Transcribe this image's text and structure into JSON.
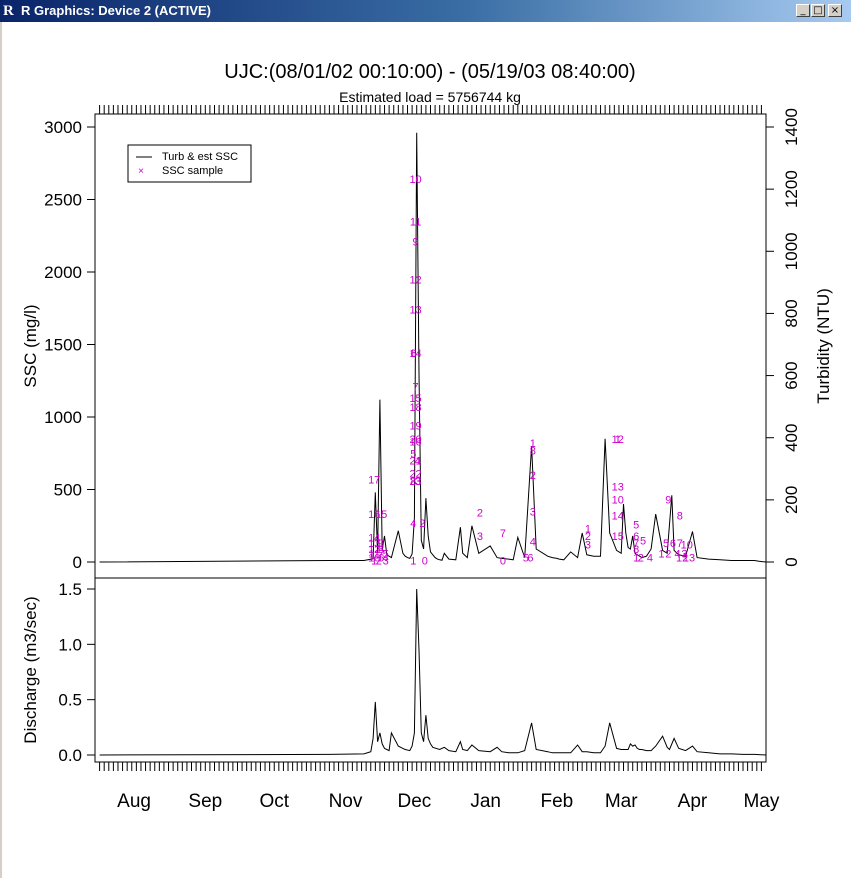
{
  "window": {
    "title": "R Graphics: Device 2 (ACTIVE)",
    "controls": {
      "minimize": "_",
      "maximize": "□",
      "close": "×"
    }
  },
  "chart_data": [
    {
      "type": "line",
      "title": "UJC:(08/01/02 00:10:00) - (05/19/03 08:40:00)",
      "subtitle": "Estimated load = 5756744 kg",
      "ylabel": "SSC (mg/l)",
      "y2label": "Turbidity (NTU)",
      "ylim": [
        0,
        3000
      ],
      "y2lim": [
        0,
        1400
      ],
      "yticks": [
        0,
        500,
        1000,
        1500,
        2000,
        2500,
        3000
      ],
      "y2ticks": [
        0,
        200,
        400,
        600,
        800,
        1000,
        1200,
        1400
      ],
      "legend": {
        "placement": "top-left",
        "entries": [
          {
            "label": "Turb & est SSC",
            "symbol": "line",
            "color": "#000000"
          },
          {
            "label": "SSC sample",
            "symbol": "×",
            "color": "#cc00cc"
          }
        ]
      },
      "series": [
        {
          "name": "Turb & est SSC",
          "color": "#000000",
          "x": [
            0,
            100,
            115,
            119,
            120,
            121,
            122,
            123,
            124,
            125,
            126,
            127,
            130,
            132,
            133,
            134,
            135,
            136,
            137,
            138,
            139,
            140,
            141,
            142,
            143,
            144,
            145,
            146,
            147,
            148,
            149,
            150,
            152,
            155,
            157,
            158,
            160,
            162,
            165,
            170,
            173,
            175,
            178,
            180,
            182,
            185,
            188,
            190,
            195,
            197,
            199,
            200,
            202,
            205,
            208,
            210,
            212,
            215,
            218,
            220,
            222,
            225,
            227,
            228,
            229,
            230,
            231,
            232,
            233,
            234,
            235,
            236,
            237,
            238,
            240,
            242,
            245,
            247,
            249,
            250,
            252,
            255,
            258,
            260,
            265,
            270,
            275,
            280,
            285,
            287,
            290
          ],
          "values": [
            0,
            10,
            10,
            22,
            480,
            60,
            1120,
            80,
            180,
            50,
            40,
            30,
            215,
            60,
            40,
            30,
            25,
            55,
            300,
            2960,
            1300,
            150,
            90,
            440,
            180,
            70,
            50,
            30,
            20,
            15,
            12,
            60,
            20,
            15,
            240,
            60,
            30,
            250,
            60,
            110,
            30,
            25,
            20,
            15,
            170,
            30,
            800,
            90,
            40,
            30,
            25,
            20,
            15,
            70,
            30,
            200,
            50,
            40,
            40,
            850,
            200,
            80,
            60,
            400,
            200,
            100,
            90,
            180,
            60,
            50,
            40,
            30,
            35,
            40,
            90,
            330,
            80,
            60,
            460,
            80,
            50,
            40,
            210,
            30,
            20,
            15,
            10,
            10,
            10,
            5,
            0
          ]
        }
      ],
      "sample_points_ssc": [
        {
          "label": "17",
          "x": 119.5,
          "y": 570
        },
        {
          "label": "16",
          "x": 119.5,
          "y": 330
        },
        {
          "label": "15",
          "x": 122.5,
          "y": 330
        },
        {
          "label": "14",
          "x": 119.5,
          "y": 170
        },
        {
          "label": "13",
          "x": 119.5,
          "y": 130
        },
        {
          "label": "12",
          "x": 119.5,
          "y": 90
        },
        {
          "label": "11",
          "x": 119.5,
          "y": 60
        },
        {
          "label": "10",
          "x": 119.5,
          "y": 30
        },
        {
          "label": "9",
          "x": 122.5,
          "y": 130
        },
        {
          "label": "8",
          "x": 122.5,
          "y": 90
        },
        {
          "label": "7",
          "x": 122.5,
          "y": 60
        },
        {
          "label": "6",
          "x": 122.5,
          "y": 30
        },
        {
          "label": "5",
          "x": 124.5,
          "y": 60
        },
        {
          "label": "4",
          "x": 124.5,
          "y": 30
        },
        {
          "label": "3",
          "x": 124.5,
          "y": 10
        },
        {
          "label": "2",
          "x": 121.5,
          "y": 10
        },
        {
          "label": "1",
          "x": 119.5,
          "y": 10
        },
        {
          "label": "10",
          "x": 137.5,
          "y": 2640
        },
        {
          "label": "11",
          "x": 137.5,
          "y": 2350
        },
        {
          "label": "9",
          "x": 137.5,
          "y": 2210
        },
        {
          "label": "12",
          "x": 137.5,
          "y": 1950
        },
        {
          "label": "13",
          "x": 137.5,
          "y": 1740
        },
        {
          "label": "14",
          "x": 137.5,
          "y": 1440
        },
        {
          "label": "6",
          "x": 136.5,
          "y": 1440
        },
        {
          "label": "7",
          "x": 137.5,
          "y": 1210
        },
        {
          "label": "15",
          "x": 137.5,
          "y": 1130
        },
        {
          "label": "18",
          "x": 137.5,
          "y": 1070
        },
        {
          "label": "19",
          "x": 137.5,
          "y": 940
        },
        {
          "label": "20",
          "x": 137.5,
          "y": 850
        },
        {
          "label": "16",
          "x": 137.5,
          "y": 830
        },
        {
          "label": "5",
          "x": 136.5,
          "y": 750
        },
        {
          "label": "21",
          "x": 137.5,
          "y": 700
        },
        {
          "label": "4",
          "x": 138.5,
          "y": 700
        },
        {
          "label": "22",
          "x": 137.5,
          "y": 610
        },
        {
          "label": "23",
          "x": 137.5,
          "y": 560
        },
        {
          "label": "8",
          "x": 136.5,
          "y": 560
        },
        {
          "label": "3",
          "x": 138.5,
          "y": 560
        },
        {
          "label": "2",
          "x": 140.5,
          "y": 270
        },
        {
          "label": "4",
          "x": 136.5,
          "y": 270
        },
        {
          "label": "1",
          "x": 136.5,
          "y": 10
        },
        {
          "label": "0",
          "x": 141.5,
          "y": 10
        },
        {
          "label": "2",
          "x": 165.5,
          "y": 340
        },
        {
          "label": "3",
          "x": 165.5,
          "y": 180
        },
        {
          "label": "7",
          "x": 175.5,
          "y": 200
        },
        {
          "label": "0",
          "x": 175.5,
          "y": 10
        },
        {
          "label": "1",
          "x": 188.5,
          "y": 820
        },
        {
          "label": "8",
          "x": 188.5,
          "y": 770
        },
        {
          "label": "2",
          "x": 188.5,
          "y": 600
        },
        {
          "label": "3",
          "x": 188.5,
          "y": 350
        },
        {
          "label": "4",
          "x": 188.5,
          "y": 140
        },
        {
          "label": "5",
          "x": 185.5,
          "y": 30
        },
        {
          "label": "6",
          "x": 187.5,
          "y": 30
        },
        {
          "label": "1",
          "x": 225.5,
          "y": 850
        },
        {
          "label": "12",
          "x": 225.5,
          "y": 850
        },
        {
          "label": "13",
          "x": 225.5,
          "y": 520
        },
        {
          "label": "10",
          "x": 225.5,
          "y": 430
        },
        {
          "label": "14",
          "x": 225.5,
          "y": 320
        },
        {
          "label": "15",
          "x": 225.5,
          "y": 180
        },
        {
          "label": "1",
          "x": 212.5,
          "y": 230
        },
        {
          "label": "2",
          "x": 212.5,
          "y": 180
        },
        {
          "label": "3",
          "x": 212.5,
          "y": 120
        },
        {
          "label": "5",
          "x": 233.5,
          "y": 260
        },
        {
          "label": "6",
          "x": 233.5,
          "y": 180
        },
        {
          "label": "7",
          "x": 233.5,
          "y": 130
        },
        {
          "label": "5",
          "x": 236.5,
          "y": 150
        },
        {
          "label": "8",
          "x": 233.5,
          "y": 90
        },
        {
          "label": "1",
          "x": 233.5,
          "y": 30
        },
        {
          "label": "2",
          "x": 235.5,
          "y": 30
        },
        {
          "label": "4",
          "x": 239.5,
          "y": 30
        },
        {
          "label": "9",
          "x": 247.5,
          "y": 430
        },
        {
          "label": "8",
          "x": 252.5,
          "y": 320
        },
        {
          "label": "5",
          "x": 246.5,
          "y": 130
        },
        {
          "label": "6",
          "x": 249.5,
          "y": 130
        },
        {
          "label": "7",
          "x": 252.5,
          "y": 130
        },
        {
          "label": "10",
          "x": 255.5,
          "y": 120
        },
        {
          "label": "1",
          "x": 244.5,
          "y": 60
        },
        {
          "label": "2",
          "x": 247.5,
          "y": 60
        },
        {
          "label": "4",
          "x": 251.5,
          "y": 60
        },
        {
          "label": "3",
          "x": 254.5,
          "y": 60
        },
        {
          "label": "12",
          "x": 253.5,
          "y": 30
        },
        {
          "label": "13",
          "x": 256.5,
          "y": 30
        }
      ]
    },
    {
      "type": "line",
      "ylabel": "Discharge (m3/sec)",
      "ylim": [
        0,
        1.5
      ],
      "yticks": [
        "0.0",
        "0.5",
        "1.0",
        "1.5"
      ],
      "xlim": [
        -2,
        290
      ],
      "xtick_labels": [
        {
          "label": "Aug",
          "x": 15
        },
        {
          "label": "Sep",
          "x": 46
        },
        {
          "label": "Oct",
          "x": 76
        },
        {
          "label": "Nov",
          "x": 107
        },
        {
          "label": "Dec",
          "x": 137
        },
        {
          "label": "Jan",
          "x": 168
        },
        {
          "label": "Feb",
          "x": 199
        },
        {
          "label": "Mar",
          "x": 227
        },
        {
          "label": "Apr",
          "x": 258
        },
        {
          "label": "May",
          "x": 288
        }
      ],
      "series": [
        {
          "name": "Discharge",
          "color": "#000000",
          "x": [
            0,
            100,
            115,
            118,
            119,
            120,
            121,
            122,
            123,
            124,
            125,
            126,
            127,
            130,
            132,
            133,
            135,
            136,
            137,
            138,
            139,
            140,
            141,
            142,
            143,
            144,
            145,
            148,
            150,
            152,
            155,
            157,
            158,
            160,
            162,
            165,
            170,
            173,
            175,
            178,
            182,
            185,
            188,
            190,
            195,
            197,
            200,
            205,
            208,
            210,
            212,
            215,
            218,
            220,
            222,
            225,
            227,
            230,
            231,
            232,
            233,
            234,
            235,
            236,
            238,
            240,
            242,
            245,
            247,
            248,
            250,
            252,
            255,
            258,
            260,
            265,
            270,
            275,
            280,
            285,
            290
          ],
          "values": [
            0,
            0.005,
            0.01,
            0.03,
            0.15,
            0.48,
            0.12,
            0.2,
            0.1,
            0.06,
            0.05,
            0.04,
            0.2,
            0.08,
            0.06,
            0.05,
            0.04,
            0.08,
            0.2,
            1.5,
            0.95,
            0.2,
            0.12,
            0.36,
            0.15,
            0.1,
            0.07,
            0.05,
            0.07,
            0.04,
            0.03,
            0.12,
            0.05,
            0.04,
            0.09,
            0.04,
            0.03,
            0.07,
            0.03,
            0.02,
            0.02,
            0.04,
            0.29,
            0.05,
            0.03,
            0.02,
            0.02,
            0.02,
            0.09,
            0.03,
            0.03,
            0.02,
            0.02,
            0.08,
            0.29,
            0.06,
            0.05,
            0.05,
            0.1,
            0.08,
            0.09,
            0.06,
            0.05,
            0.05,
            0.04,
            0.04,
            0.08,
            0.17,
            0.07,
            0.05,
            0.15,
            0.06,
            0.04,
            0.08,
            0.03,
            0.02,
            0.01,
            0.01,
            0.005,
            0.005,
            0
          ]
        }
      ]
    }
  ]
}
